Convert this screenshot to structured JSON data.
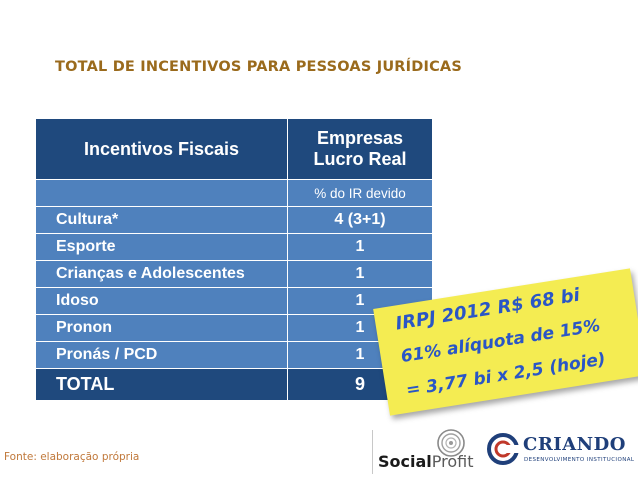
{
  "title": "TOTAL DE INCENTIVOS PARA PESSOAS JURÍDICAS",
  "table": {
    "col1_header": "Incentivos Fiscais",
    "col2_header_line1": "Empresas",
    "col2_header_line2": "Lucro Real",
    "subheader": "% do IR devido",
    "rows": [
      {
        "label": "Cultura*",
        "value": "4 (3+1)"
      },
      {
        "label": "Esporte",
        "value": "1"
      },
      {
        "label": "Crianças e Adolescentes",
        "value": "1"
      },
      {
        "label": "Idoso",
        "value": "1"
      },
      {
        "label": "Pronon",
        "value": "1"
      },
      {
        "label": "Pronás / PCD",
        "value": "1"
      }
    ],
    "total_label": "TOTAL",
    "total_value": "9"
  },
  "note": {
    "line1": "IRPJ 2012 R$ 68 bi",
    "line2": "61% alíquota de 15%",
    "line3": "=  3,77 bi  x 2,5 (hoje)"
  },
  "source": "Fonte: elaboração própria",
  "logos": {
    "socialprofit_bold": "Social",
    "socialprofit_light": "Profit",
    "criando_name": "CRIANDO",
    "criando_sub": "DESENVOLVIMENTO INSTITUCIONAL"
  },
  "colors": {
    "header_dark_blue": "#1f497d",
    "row_blue": "#4f81bd",
    "title_brown": "#9a6a1c",
    "note_yellow": "#f4ec52",
    "note_text_blue": "#2a56c6"
  }
}
